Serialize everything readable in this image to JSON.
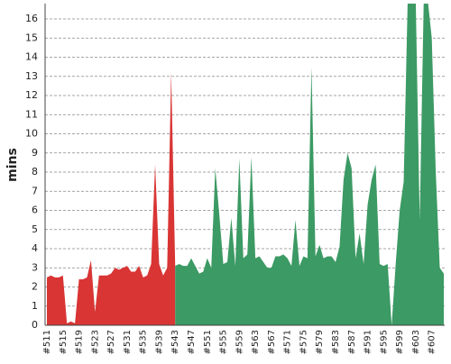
{
  "chart_data": {
    "type": "area",
    "y_label": "mins",
    "categories": [
      "#511",
      null,
      null,
      null,
      "#515",
      null,
      null,
      null,
      "#519",
      null,
      null,
      null,
      "#523",
      null,
      null,
      null,
      "#527",
      null,
      null,
      null,
      "#531",
      null,
      null,
      null,
      "#535",
      null,
      null,
      null,
      "#539",
      null,
      null,
      null,
      "#543",
      null,
      null,
      null,
      "#547",
      null,
      null,
      null,
      "#551",
      null,
      null,
      null,
      "#555",
      null,
      null,
      null,
      "#559",
      null,
      null,
      null,
      "#563",
      null,
      null,
      null,
      "#567",
      null,
      null,
      null,
      "#571",
      null,
      null,
      null,
      "#575",
      null,
      null,
      null,
      "#579",
      null,
      null,
      null,
      "#583",
      null,
      null,
      null,
      "#587",
      null,
      null,
      null,
      "#591",
      null,
      null,
      null,
      "#595",
      null,
      null,
      null,
      "#599",
      null,
      null,
      null,
      "#603",
      null,
      null,
      null,
      "#607",
      null,
      null,
      null
    ],
    "series": [
      {
        "color": "#d93535",
        "values": [
          2.5,
          2.6,
          2.5,
          2.5,
          2.6,
          0.1,
          0.2,
          0.1,
          2.4,
          2.4,
          2.5,
          3.4,
          0.7,
          2.6,
          2.6,
          2.6,
          2.7,
          3.0,
          2.9,
          3.0,
          3.1,
          2.8,
          2.8,
          3.1,
          2.5,
          2.6,
          3.2,
          8.4,
          3.2,
          2.6,
          3.0,
          13.2,
          3.1,
          null,
          null,
          null,
          null,
          null,
          null,
          null,
          null,
          null,
          null,
          null,
          null,
          null,
          null,
          null,
          null,
          null,
          null,
          null,
          null,
          null,
          null,
          null,
          null,
          null,
          null,
          null,
          null,
          null,
          null,
          null,
          null,
          null,
          null,
          null,
          null,
          null,
          null,
          null,
          null,
          null,
          null,
          null,
          null,
          null,
          null,
          null,
          null,
          null,
          null,
          null,
          null,
          null,
          null,
          null,
          null,
          null,
          null,
          null,
          null,
          null,
          null,
          null,
          null,
          null,
          null,
          null
        ]
      },
      {
        "color": "#3c9a64",
        "values": [
          null,
          null,
          null,
          null,
          null,
          null,
          null,
          null,
          null,
          null,
          null,
          null,
          null,
          null,
          null,
          null,
          null,
          null,
          null,
          null,
          null,
          null,
          null,
          null,
          null,
          null,
          null,
          null,
          null,
          null,
          null,
          null,
          3.1,
          3.2,
          3.1,
          3.1,
          3.5,
          3.1,
          2.7,
          2.8,
          3.5,
          3.0,
          8.2,
          5.8,
          3.2,
          3.3,
          5.6,
          3.1,
          8.7,
          3.5,
          3.7,
          8.8,
          3.5,
          3.6,
          3.3,
          3.0,
          3.0,
          3.6,
          3.6,
          3.7,
          3.5,
          3.1,
          5.5,
          3.1,
          3.6,
          3.5,
          13.5,
          3.6,
          4.2,
          3.5,
          3.6,
          3.6,
          3.3,
          4.1,
          7.6,
          9.0,
          8.2,
          3.5,
          4.8,
          3.2,
          6.3,
          7.6,
          8.4,
          3.2,
          3.1,
          3.2,
          0,
          3.2,
          6.0,
          7.5,
          17,
          17,
          17,
          5.5,
          17,
          17,
          15,
          8,
          3.0,
          2.7
        ]
      }
    ],
    "ylim": [
      0,
      16.8
    ],
    "yticks": [
      0,
      1,
      2,
      3,
      4,
      5,
      6,
      7,
      8,
      9,
      10,
      11,
      12,
      13,
      14,
      15,
      16
    ],
    "grid": true
  }
}
